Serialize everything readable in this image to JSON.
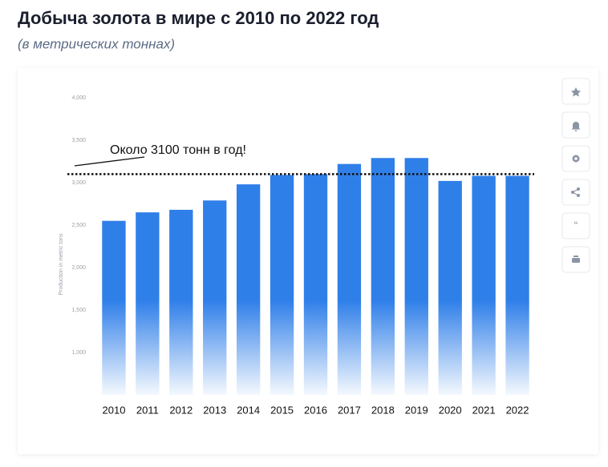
{
  "chart_data": {
    "type": "bar",
    "title": "Добыча золота в мире с 2010 по 2022 год",
    "subtitle": "(в метрических тоннах)",
    "y_label": "Production in metric tons",
    "annotation": "Около 3100 тонн в год!",
    "reference_line": 3100,
    "categories": [
      "2010",
      "2011",
      "2012",
      "2013",
      "2014",
      "2015",
      "2016",
      "2017",
      "2018",
      "2019",
      "2020",
      "2021",
      "2022"
    ],
    "values": [
      2550,
      2650,
      2680,
      2790,
      2980,
      3090,
      3100,
      3220,
      3290,
      3290,
      3020,
      3080,
      3080
    ],
    "color": "#2f7fe9",
    "ylim": [
      500,
      4000
    ],
    "yticks": [
      {
        "value": 1000,
        "label": "1,000"
      },
      {
        "value": 1500,
        "label": "1,500"
      },
      {
        "value": 2000,
        "label": "2,000"
      },
      {
        "value": 2500,
        "label": "2,500"
      },
      {
        "value": 3000,
        "label": "3,000"
      },
      {
        "value": 3500,
        "label": "3,500"
      },
      {
        "value": 4000,
        "label": "4,000"
      }
    ],
    "grid": false
  }
}
